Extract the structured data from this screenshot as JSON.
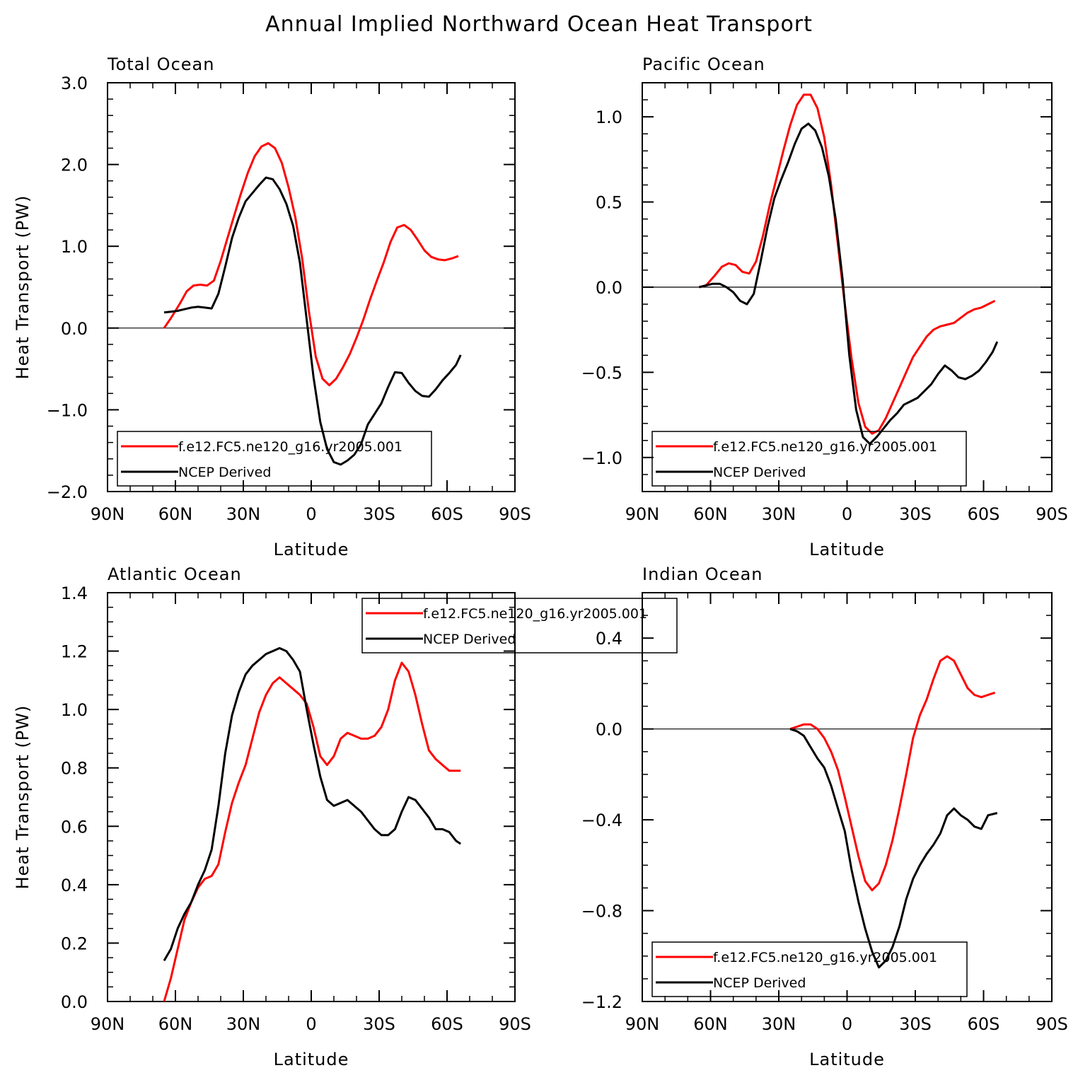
{
  "figure": {
    "title": "Annual Implied Northward Ocean Heat Transport",
    "colors": {
      "model": "#ff0000",
      "obs": "#000000",
      "axis": "#000000",
      "background": "#ffffff"
    }
  },
  "chart_data": [
    {
      "type": "line",
      "title": "Total Ocean",
      "xlabel": "Latitude",
      "ylabel": "Heat Transport (PW)",
      "xlim": [
        90,
        -90
      ],
      "ylim": [
        -2.0,
        3.0
      ],
      "xticks": [
        90,
        60,
        30,
        0,
        -30,
        -60,
        -90
      ],
      "xtick_labels": [
        "90N",
        "60N",
        "30N",
        "0",
        "30S",
        "60S",
        "90S"
      ],
      "yticks": [
        -2.0,
        -1.0,
        0.0,
        1.0,
        2.0,
        3.0
      ],
      "ytick_labels": [
        "−2.0",
        "−1.0",
        "0.0",
        "1.0",
        "2.0",
        "3.0"
      ],
      "ytick_minor": 0.2,
      "zero_line": true,
      "legend": {
        "position": "bottom-left"
      },
      "series": [
        {
          "name": "f.e12.FC5.ne120_g16.yr2005.001",
          "color": "#ff0000",
          "x": [
            65,
            62,
            58,
            55,
            52,
            49,
            46,
            43,
            40,
            37,
            34,
            31,
            28,
            25,
            22,
            19,
            16,
            13,
            10,
            7,
            4,
            1,
            -2,
            -5,
            -8,
            -11,
            -14,
            -17,
            -20,
            -23,
            -26,
            -29,
            -32,
            -35,
            -38,
            -41,
            -44,
            -47,
            -50,
            -53,
            -56,
            -59,
            -62,
            -65
          ],
          "y": [
            0.0,
            0.12,
            0.3,
            0.45,
            0.52,
            0.53,
            0.52,
            0.58,
            0.82,
            1.1,
            1.38,
            1.65,
            1.9,
            2.1,
            2.22,
            2.26,
            2.2,
            2.02,
            1.72,
            1.35,
            0.85,
            0.2,
            -0.35,
            -0.62,
            -0.7,
            -0.62,
            -0.48,
            -0.32,
            -0.12,
            0.1,
            0.35,
            0.58,
            0.8,
            1.05,
            1.23,
            1.26,
            1.2,
            1.08,
            0.95,
            0.87,
            0.84,
            0.83,
            0.85,
            0.88
          ]
        },
        {
          "name": "NCEP Derived",
          "color": "#000000",
          "x": [
            65,
            62,
            59,
            56,
            53,
            50,
            47,
            44,
            41,
            38,
            35,
            32,
            29,
            26,
            23,
            20,
            17,
            14,
            11,
            8,
            5,
            2,
            -1,
            -4,
            -7,
            -10,
            -13,
            -16,
            -19,
            -22,
            -25,
            -28,
            -31,
            -34,
            -37,
            -40,
            -43,
            -46,
            -49,
            -52,
            -55,
            -58,
            -61,
            -64,
            -66
          ],
          "y": [
            0.19,
            0.2,
            0.21,
            0.23,
            0.25,
            0.26,
            0.25,
            0.24,
            0.42,
            0.75,
            1.1,
            1.35,
            1.55,
            1.65,
            1.75,
            1.84,
            1.82,
            1.7,
            1.52,
            1.25,
            0.8,
            0.1,
            -0.6,
            -1.15,
            -1.48,
            -1.64,
            -1.67,
            -1.62,
            -1.55,
            -1.42,
            -1.18,
            -1.05,
            -0.92,
            -0.72,
            -0.54,
            -0.55,
            -0.67,
            -0.77,
            -0.83,
            -0.84,
            -0.75,
            -0.64,
            -0.55,
            -0.45,
            -0.33
          ]
        }
      ]
    },
    {
      "type": "line",
      "title": "Pacific Ocean",
      "xlabel": "Latitude",
      "ylabel": "",
      "xlim": [
        90,
        -90
      ],
      "ylim": [
        -1.2,
        1.2
      ],
      "xticks": [
        90,
        60,
        30,
        0,
        -30,
        -60,
        -90
      ],
      "xtick_labels": [
        "90N",
        "60N",
        "30N",
        "0",
        "30S",
        "60S",
        "90S"
      ],
      "yticks": [
        -1.0,
        -0.5,
        0.0,
        0.5,
        1.0
      ],
      "ytick_labels": [
        "−1.0",
        "−0.5",
        "0.0",
        "0.5",
        "1.0"
      ],
      "ytick_minor": 0.1,
      "zero_line": true,
      "legend": {
        "position": "bottom-left"
      },
      "series": [
        {
          "name": "f.e12.FC5.ne120_g16.yr2005.001",
          "color": "#ff0000",
          "x": [
            65,
            62,
            58,
            55,
            52,
            49,
            46,
            43,
            40,
            37,
            34,
            31,
            28,
            25,
            22,
            19,
            16,
            13,
            10,
            7,
            4,
            1,
            -2,
            -5,
            -8,
            -11,
            -14,
            -17,
            -20,
            -23,
            -26,
            -29,
            -32,
            -35,
            -38,
            -41,
            -44,
            -47,
            -50,
            -53,
            -56,
            -59,
            -62,
            -65
          ],
          "y": [
            0.0,
            0.01,
            0.07,
            0.12,
            0.14,
            0.13,
            0.09,
            0.08,
            0.15,
            0.3,
            0.48,
            0.64,
            0.8,
            0.95,
            1.07,
            1.13,
            1.13,
            1.05,
            0.88,
            0.6,
            0.25,
            -0.1,
            -0.42,
            -0.68,
            -0.82,
            -0.86,
            -0.84,
            -0.77,
            -0.68,
            -0.59,
            -0.5,
            -0.41,
            -0.35,
            -0.29,
            -0.25,
            -0.23,
            -0.22,
            -0.21,
            -0.18,
            -0.15,
            -0.13,
            -0.12,
            -0.1,
            -0.08
          ]
        },
        {
          "name": "NCEP Derived",
          "color": "#000000",
          "x": [
            65,
            62,
            59,
            56,
            53,
            50,
            47,
            44,
            41,
            38,
            35,
            32,
            29,
            26,
            23,
            20,
            17,
            14,
            11,
            8,
            5,
            2,
            -1,
            -4,
            -7,
            -10,
            -13,
            -16,
            -19,
            -22,
            -25,
            -28,
            -31,
            -34,
            -37,
            -40,
            -43,
            -46,
            -49,
            -52,
            -55,
            -58,
            -61,
            -64,
            -66
          ],
          "y": [
            0.0,
            0.01,
            0.02,
            0.02,
            0.0,
            -0.03,
            -0.08,
            -0.1,
            -0.04,
            0.15,
            0.35,
            0.52,
            0.63,
            0.73,
            0.84,
            0.93,
            0.96,
            0.92,
            0.82,
            0.65,
            0.4,
            0.05,
            -0.4,
            -0.72,
            -0.88,
            -0.92,
            -0.88,
            -0.83,
            -0.78,
            -0.74,
            -0.69,
            -0.67,
            -0.65,
            -0.61,
            -0.57,
            -0.51,
            -0.46,
            -0.49,
            -0.53,
            -0.54,
            -0.52,
            -0.49,
            -0.44,
            -0.38,
            -0.32
          ]
        }
      ]
    },
    {
      "type": "line",
      "title": "Atlantic Ocean",
      "xlabel": "Latitude",
      "ylabel": "Heat Transport (PW)",
      "xlim": [
        90,
        -90
      ],
      "ylim": [
        0.0,
        1.4
      ],
      "xticks": [
        90,
        60,
        30,
        0,
        -30,
        -60,
        -90
      ],
      "xtick_labels": [
        "90N",
        "60N",
        "30N",
        "0",
        "30S",
        "60S",
        "90S"
      ],
      "yticks": [
        0.0,
        0.2,
        0.4,
        0.6,
        0.8,
        1.0,
        1.2,
        1.4
      ],
      "ytick_labels": [
        "0.0",
        "0.2",
        "0.4",
        "0.6",
        "0.8",
        "1.0",
        "1.2",
        "1.4"
      ],
      "ytick_minor": 0.05,
      "zero_line": false,
      "legend": {
        "position": "top-right"
      },
      "series": [
        {
          "name": "f.e12.FC5.ne120_g16.yr2005.001",
          "color": "#ff0000",
          "x": [
            65,
            62,
            59,
            56,
            53,
            50,
            47,
            44,
            41,
            38,
            35,
            32,
            29,
            26,
            23,
            20,
            17,
            14,
            11,
            8,
            5,
            2,
            -1,
            -4,
            -7,
            -10,
            -13,
            -16,
            -19,
            -22,
            -25,
            -28,
            -31,
            -34,
            -37,
            -40,
            -43,
            -46,
            -49,
            -52,
            -55,
            -58,
            -61,
            -64,
            -66
          ],
          "y": [
            0.0,
            0.08,
            0.18,
            0.28,
            0.34,
            0.39,
            0.42,
            0.43,
            0.47,
            0.58,
            0.68,
            0.75,
            0.81,
            0.9,
            0.99,
            1.05,
            1.09,
            1.11,
            1.09,
            1.07,
            1.05,
            1.02,
            0.94,
            0.84,
            0.81,
            0.84,
            0.9,
            0.92,
            0.91,
            0.9,
            0.9,
            0.91,
            0.94,
            1.0,
            1.1,
            1.16,
            1.13,
            1.05,
            0.95,
            0.86,
            0.83,
            0.81,
            0.79,
            0.79,
            0.79
          ]
        },
        {
          "name": "NCEP Derived",
          "color": "#000000",
          "x": [
            65,
            62,
            59,
            56,
            53,
            50,
            47,
            44,
            41,
            38,
            35,
            32,
            29,
            26,
            23,
            20,
            17,
            14,
            11,
            8,
            5,
            2,
            -1,
            -4,
            -7,
            -10,
            -13,
            -16,
            -19,
            -22,
            -25,
            -28,
            -31,
            -34,
            -37,
            -40,
            -43,
            -46,
            -49,
            -52,
            -55,
            -58,
            -61,
            -64,
            -66
          ],
          "y": [
            0.14,
            0.18,
            0.25,
            0.3,
            0.34,
            0.4,
            0.45,
            0.52,
            0.67,
            0.85,
            0.98,
            1.06,
            1.12,
            1.15,
            1.17,
            1.19,
            1.2,
            1.21,
            1.2,
            1.17,
            1.13,
            1.0,
            0.88,
            0.77,
            0.69,
            0.67,
            0.68,
            0.69,
            0.67,
            0.65,
            0.62,
            0.59,
            0.57,
            0.57,
            0.59,
            0.65,
            0.7,
            0.69,
            0.66,
            0.63,
            0.59,
            0.59,
            0.58,
            0.55,
            0.54
          ]
        }
      ]
    },
    {
      "type": "line",
      "title": "Indian Ocean",
      "xlabel": "Latitude",
      "ylabel": "",
      "xlim": [
        90,
        -90
      ],
      "ylim": [
        -1.2,
        0.6
      ],
      "xticks": [
        90,
        60,
        30,
        0,
        -30,
        -60,
        -90
      ],
      "xtick_labels": [
        "90N",
        "60N",
        "30N",
        "0",
        "30S",
        "60S",
        "90S"
      ],
      "yticks": [
        -1.2,
        -0.8,
        -0.4,
        0.0,
        0.4
      ],
      "ytick_labels": [
        "−1.2",
        "−0.8",
        "−0.4",
        "0.0",
        "0.4"
      ],
      "ytick_minor": 0.1,
      "zero_line": true,
      "legend": {
        "position": "bottom-left"
      },
      "series": [
        {
          "name": "f.e12.FC5.ne120_g16.yr2005.001",
          "color": "#ff0000",
          "x": [
            25,
            22,
            19,
            16,
            13,
            10,
            7,
            4,
            1,
            -2,
            -5,
            -8,
            -11,
            -14,
            -17,
            -20,
            -23,
            -26,
            -29,
            -32,
            -35,
            -38,
            -41,
            -44,
            -47,
            -50,
            -53,
            -56,
            -59,
            -62,
            -65
          ],
          "y": [
            0.0,
            0.01,
            0.02,
            0.02,
            0.0,
            -0.04,
            -0.1,
            -0.18,
            -0.3,
            -0.43,
            -0.56,
            -0.67,
            -0.71,
            -0.68,
            -0.6,
            -0.49,
            -0.35,
            -0.2,
            -0.04,
            0.06,
            0.13,
            0.22,
            0.3,
            0.32,
            0.3,
            0.24,
            0.18,
            0.15,
            0.14,
            0.15,
            0.16
          ]
        },
        {
          "name": "NCEP Derived",
          "color": "#000000",
          "x": [
            25,
            22,
            19,
            16,
            13,
            10,
            7,
            4,
            1,
            -2,
            -5,
            -8,
            -11,
            -14,
            -17,
            -20,
            -23,
            -26,
            -29,
            -32,
            -35,
            -38,
            -41,
            -44,
            -47,
            -50,
            -53,
            -56,
            -59,
            -62,
            -66
          ],
          "y": [
            0.0,
            -0.01,
            -0.03,
            -0.08,
            -0.13,
            -0.17,
            -0.25,
            -0.35,
            -0.45,
            -0.62,
            -0.76,
            -0.88,
            -0.98,
            -1.05,
            -1.02,
            -0.96,
            -0.87,
            -0.75,
            -0.66,
            -0.6,
            -0.55,
            -0.51,
            -0.46,
            -0.38,
            -0.35,
            -0.38,
            -0.4,
            -0.43,
            -0.44,
            -0.38,
            -0.37
          ]
        }
      ]
    }
  ]
}
